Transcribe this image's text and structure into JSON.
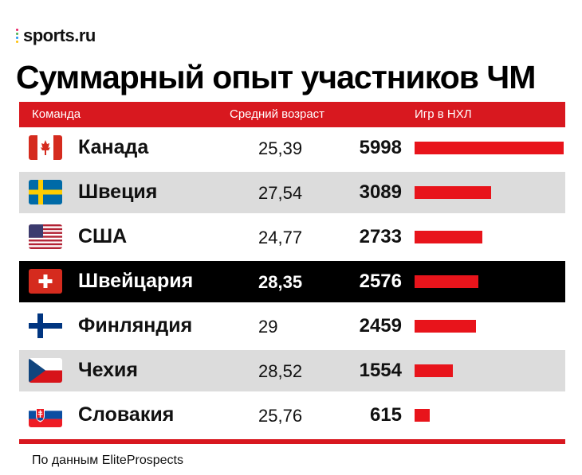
{
  "brand": {
    "logo_text": "sports.ru",
    "dot_colors": [
      "#e91e63",
      "#4caf50",
      "#2196f3",
      "#ffc107"
    ]
  },
  "title": "Суммарный опыт участников ЧМ",
  "header": {
    "col_team": "Команда",
    "col_age": "Средний возраст",
    "col_games": "Игр в НХЛ"
  },
  "colors": {
    "accent": "#d8181f",
    "bar": "#e8141b",
    "highlight_row": "#000000",
    "alt_row": "#dcdcdc"
  },
  "chart_data": {
    "type": "bar",
    "title": "Суммарный опыт участников ЧМ",
    "categories": [
      "Канада",
      "Швеция",
      "США",
      "Швейцария",
      "Финляндия",
      "Чехия",
      "Словакия"
    ],
    "series": [
      {
        "name": "Игр в НХЛ",
        "values": [
          5998,
          3089,
          2733,
          2576,
          2459,
          1554,
          615
        ]
      }
    ],
    "avg_age": [
      "25,39",
      "27,54",
      "24,77",
      "28,35",
      "29",
      "28,52",
      "25,76"
    ],
    "highlighted": "Швейцария",
    "xlim": [
      0,
      5998
    ]
  },
  "rows": [
    {
      "team": "Канада",
      "flag": "canada-flag-icon",
      "age": "25,39",
      "games": "5998"
    },
    {
      "team": "Швеция",
      "flag": "sweden-flag-icon",
      "age": "27,54",
      "games": "3089"
    },
    {
      "team": "США",
      "flag": "usa-flag-icon",
      "age": "24,77",
      "games": "2733"
    },
    {
      "team": "Швейцария",
      "flag": "switzerland-flag-icon",
      "age": "28,35",
      "games": "2576"
    },
    {
      "team": "Финляндия",
      "flag": "finland-flag-icon",
      "age": "29",
      "games": "2459"
    },
    {
      "team": "Чехия",
      "flag": "czech-flag-icon",
      "age": "28,52",
      "games": "1554"
    },
    {
      "team": "Словакия",
      "flag": "slovakia-flag-icon",
      "age": "25,76",
      "games": "615"
    }
  ],
  "source": "По данным EliteProspects"
}
